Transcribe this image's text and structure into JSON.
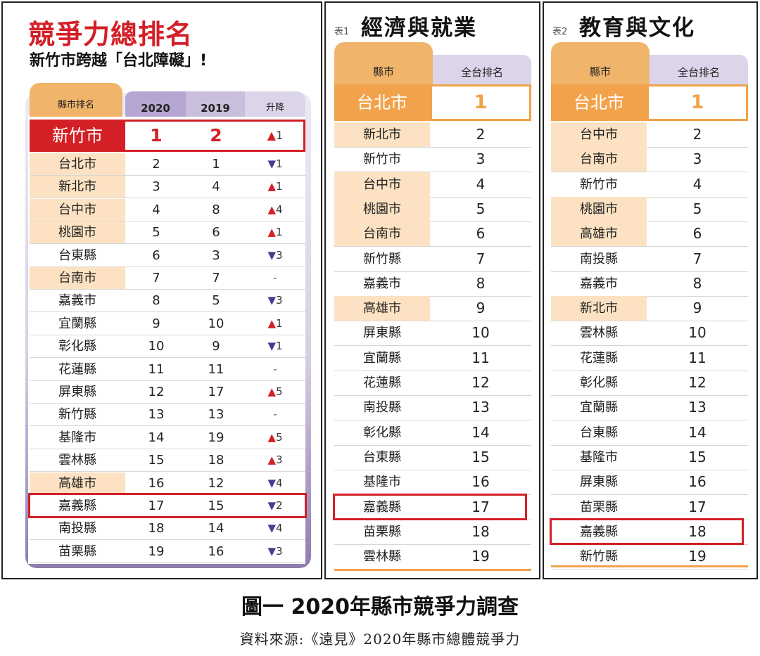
{
  "chart_data": [
    {
      "type": "table",
      "title": "競爭力總排名",
      "subtitle": "新竹市跨越「台北障礙」!",
      "columns": [
        "縣市排名",
        "2020",
        "2019",
        "升降"
      ],
      "top": {
        "name": "新竹市",
        "r2020": "1",
        "r2019": "2",
        "dir": "up",
        "change": "1"
      },
      "rows": [
        {
          "name": "台北市",
          "r2020": "2",
          "r2019": "1",
          "dir": "down",
          "change": "1",
          "city": true
        },
        {
          "name": "新北市",
          "r2020": "3",
          "r2019": "4",
          "dir": "up",
          "change": "1",
          "city": true
        },
        {
          "name": "台中市",
          "r2020": "4",
          "r2019": "8",
          "dir": "up",
          "change": "4",
          "city": true
        },
        {
          "name": "桃園市",
          "r2020": "5",
          "r2019": "6",
          "dir": "up",
          "change": "1",
          "city": true
        },
        {
          "name": "台東縣",
          "r2020": "6",
          "r2019": "3",
          "dir": "down",
          "change": "3",
          "city": false
        },
        {
          "name": "台南市",
          "r2020": "7",
          "r2019": "7",
          "dir": "flat",
          "change": "-",
          "city": true
        },
        {
          "name": "嘉義市",
          "r2020": "8",
          "r2019": "5",
          "dir": "down",
          "change": "3",
          "city": false
        },
        {
          "name": "宜蘭縣",
          "r2020": "9",
          "r2019": "10",
          "dir": "up",
          "change": "1",
          "city": false
        },
        {
          "name": "彰化縣",
          "r2020": "10",
          "r2019": "9",
          "dir": "down",
          "change": "1",
          "city": false
        },
        {
          "name": "花蓮縣",
          "r2020": "11",
          "r2019": "11",
          "dir": "flat",
          "change": "-",
          "city": false
        },
        {
          "name": "屏東縣",
          "r2020": "12",
          "r2019": "17",
          "dir": "up",
          "change": "5",
          "city": false
        },
        {
          "name": "新竹縣",
          "r2020": "13",
          "r2019": "13",
          "dir": "flat",
          "change": "-",
          "city": false
        },
        {
          "name": "基隆市",
          "r2020": "14",
          "r2019": "19",
          "dir": "up",
          "change": "5",
          "city": false
        },
        {
          "name": "雲林縣",
          "r2020": "15",
          "r2019": "18",
          "dir": "up",
          "change": "3",
          "city": false
        },
        {
          "name": "高雄市",
          "r2020": "16",
          "r2019": "12",
          "dir": "down",
          "change": "4",
          "city": true
        },
        {
          "name": "嘉義縣",
          "r2020": "17",
          "r2019": "15",
          "dir": "down",
          "change": "2",
          "city": false,
          "highlight": true
        },
        {
          "name": "南投縣",
          "r2020": "18",
          "r2019": "14",
          "dir": "down",
          "change": "4",
          "city": false
        },
        {
          "name": "苗栗縣",
          "r2020": "19",
          "r2019": "16",
          "dir": "down",
          "change": "3",
          "city": false
        }
      ]
    },
    {
      "type": "table",
      "table_no": "表1",
      "title": "經濟與就業",
      "columns": [
        "縣市",
        "全台排名"
      ],
      "rows": [
        {
          "name": "台北市",
          "rank": "1",
          "city": true
        },
        {
          "name": "新北市",
          "rank": "2",
          "city": true
        },
        {
          "name": "新竹市",
          "rank": "3",
          "city": false
        },
        {
          "name": "台中市",
          "rank": "4",
          "city": true
        },
        {
          "name": "桃園市",
          "rank": "5",
          "city": true
        },
        {
          "name": "台南市",
          "rank": "6",
          "city": true
        },
        {
          "name": "新竹縣",
          "rank": "7",
          "city": false
        },
        {
          "name": "嘉義市",
          "rank": "8",
          "city": false
        },
        {
          "name": "高雄市",
          "rank": "9",
          "city": true
        },
        {
          "name": "屏東縣",
          "rank": "10",
          "city": false
        },
        {
          "name": "宜蘭縣",
          "rank": "11",
          "city": false
        },
        {
          "name": "花蓮縣",
          "rank": "12",
          "city": false
        },
        {
          "name": "南投縣",
          "rank": "13",
          "city": false
        },
        {
          "name": "彰化縣",
          "rank": "14",
          "city": false
        },
        {
          "name": "台東縣",
          "rank": "15",
          "city": false
        },
        {
          "name": "基隆市",
          "rank": "16",
          "city": false
        },
        {
          "name": "嘉義縣",
          "rank": "17",
          "city": false,
          "highlight": true
        },
        {
          "name": "苗栗縣",
          "rank": "18",
          "city": false
        },
        {
          "name": "雲林縣",
          "rank": "19",
          "city": false
        }
      ]
    },
    {
      "type": "table",
      "table_no": "表2",
      "title": "教育與文化",
      "columns": [
        "縣市",
        "全台排名"
      ],
      "rows": [
        {
          "name": "台北市",
          "rank": "1",
          "city": true
        },
        {
          "name": "台中市",
          "rank": "2",
          "city": true
        },
        {
          "name": "台南市",
          "rank": "3",
          "city": true
        },
        {
          "name": "新竹市",
          "rank": "4",
          "city": false
        },
        {
          "name": "桃園市",
          "rank": "5",
          "city": true
        },
        {
          "name": "高雄市",
          "rank": "6",
          "city": true
        },
        {
          "name": "南投縣",
          "rank": "7",
          "city": false
        },
        {
          "name": "嘉義市",
          "rank": "8",
          "city": false
        },
        {
          "name": "新北市",
          "rank": "9",
          "city": true
        },
        {
          "name": "雲林縣",
          "rank": "10",
          "city": false
        },
        {
          "name": "花蓮縣",
          "rank": "11",
          "city": false
        },
        {
          "name": "彰化縣",
          "rank": "12",
          "city": false
        },
        {
          "name": "宜蘭縣",
          "rank": "13",
          "city": false
        },
        {
          "name": "台東縣",
          "rank": "14",
          "city": false
        },
        {
          "name": "基隆市",
          "rank": "15",
          "city": false
        },
        {
          "name": "屏東縣",
          "rank": "16",
          "city": false
        },
        {
          "name": "苗栗縣",
          "rank": "17",
          "city": false
        },
        {
          "name": "嘉義縣",
          "rank": "18",
          "city": false,
          "highlight": true
        },
        {
          "name": "新竹縣",
          "rank": "19",
          "city": false
        }
      ]
    }
  ],
  "caption": "圖一 2020年縣市競爭力調查",
  "source": "資料來源:《遠見》2020年縣市總體競爭力",
  "colors": {
    "red": "#d41f26",
    "orange": "#f1a24a",
    "peach": "#fce2c2",
    "purple_header": "#b5a7d1",
    "purple_arrow": "#4b3a92"
  },
  "arrows": {
    "up": "▲",
    "down": "▼"
  }
}
